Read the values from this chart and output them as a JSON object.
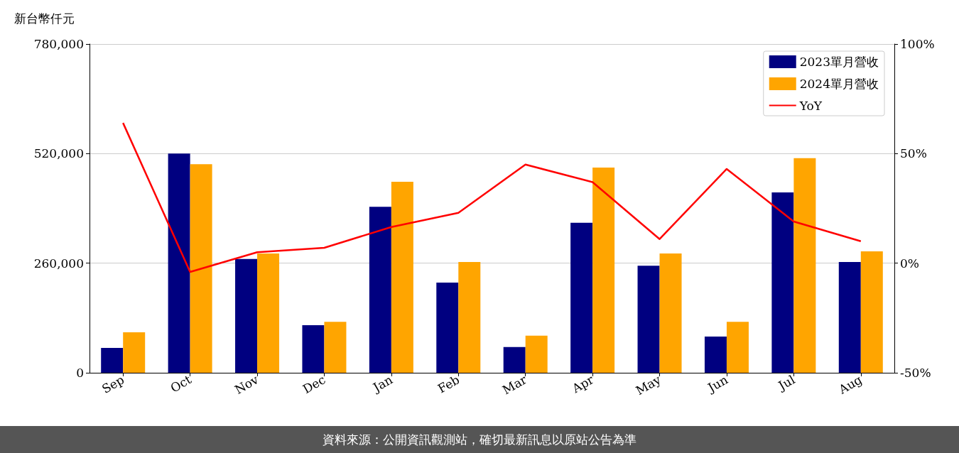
{
  "chart_data": {
    "type": "bar",
    "ylabel": "新台幣仟元",
    "categories": [
      "Sep",
      "Oct",
      "Nov",
      "Dec",
      "Jan",
      "Feb",
      "Mar",
      "Apr",
      "May",
      "Jun",
      "Jul",
      "Aug"
    ],
    "series": [
      {
        "name": "2023單月營收",
        "color": "#000080",
        "values": [
          59000,
          520000,
          270000,
          113000,
          394000,
          214000,
          61000,
          356000,
          254000,
          86000,
          428000,
          263000
        ]
      },
      {
        "name": "2024單月營收",
        "color": "#ffa500",
        "values": [
          96000,
          495000,
          283000,
          121000,
          453000,
          263000,
          88000,
          487000,
          283000,
          121000,
          509000,
          288000
        ]
      },
      {
        "name": "YoY",
        "type": "line",
        "axis": "y2",
        "color": "#ff0000",
        "marker": "none",
        "values": [
          64,
          -4,
          5,
          7,
          16.5,
          23,
          45,
          37,
          11,
          43,
          19,
          10
        ]
      }
    ],
    "ylim": [
      0,
      780000
    ],
    "yticks": [
      {
        "value": 0,
        "label": "0"
      },
      {
        "value": 260000,
        "label": "260,000"
      },
      {
        "value": 520000,
        "label": "520,000"
      },
      {
        "value": 780000,
        "label": "780,000"
      }
    ],
    "y2lim": [
      -50,
      100
    ],
    "y2ticks": [
      {
        "value": -50,
        "label": "-50%"
      },
      {
        "value": 0,
        "label": "0%"
      },
      {
        "value": 50,
        "label": "50%"
      },
      {
        "value": 100,
        "label": "100%"
      }
    ],
    "grid": "y",
    "legend": "top right",
    "annotations": [
      "資料來源：公開資訊觀測站，確切最新訊息以原站公告為準"
    ]
  }
}
